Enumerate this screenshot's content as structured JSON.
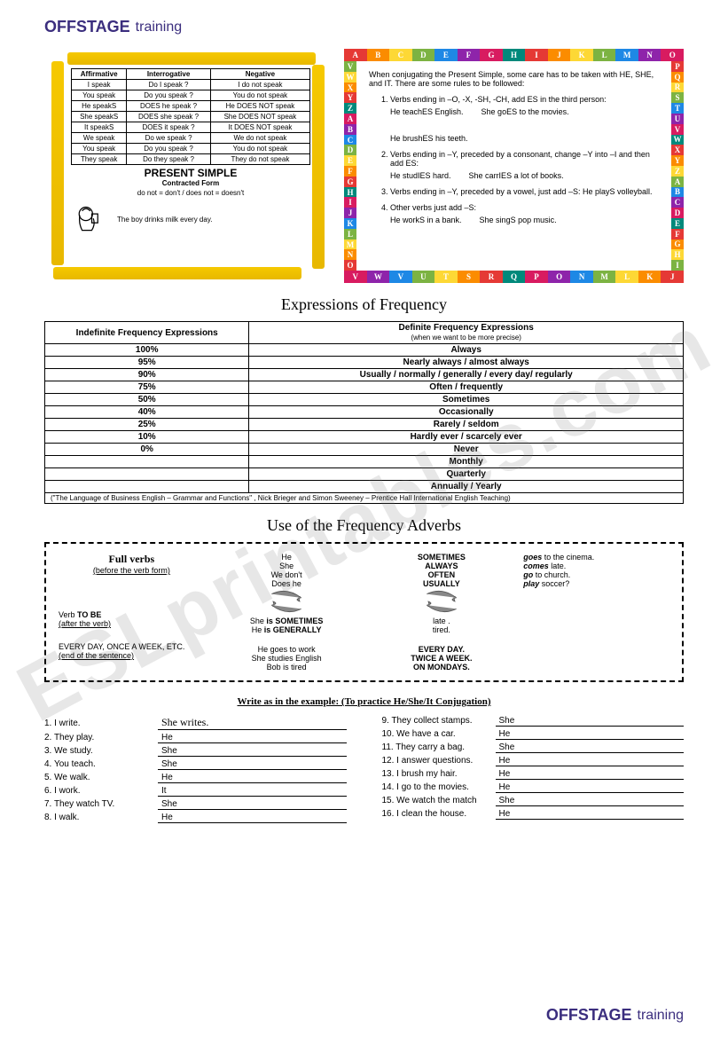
{
  "logo": {
    "brand": "OFFSTAGE",
    "sub": "training",
    "color": "#3b2e7e"
  },
  "watermark": "ESLprintables.com",
  "conj": {
    "headers": [
      "Affirmative",
      "Interrogative",
      "Negative"
    ],
    "rows": [
      [
        "I speak",
        "Do I speak ?",
        "I do not speak"
      ],
      [
        "You speak",
        "Do you speak ?",
        "You do not speak"
      ],
      [
        "He speakS",
        "DOES he speak ?",
        "He DOES NOT speak"
      ],
      [
        "She speakS",
        "DOES she speak ?",
        "She DOES NOT speak"
      ],
      [
        "It speakS",
        "DOES it speak ?",
        "It DOES NOT speak"
      ],
      [
        "We speak",
        "Do we speak ?",
        "We do not speak"
      ],
      [
        "You speak",
        "Do you speak ?",
        "You do not speak"
      ],
      [
        "They speak",
        "Do they speak ?",
        "They do not speak"
      ]
    ],
    "title": "PRESENT SIMPLE",
    "contracted_label": "Contracted Form",
    "contracted": "do not = don't  /  does not = doesn't",
    "example": "The boy drinks milk every day."
  },
  "rules": {
    "intro": "When conjugating the Present Simple, some care has to be taken with HE, SHE, and IT. There are some rules to be followed:",
    "items": [
      {
        "text": "Verbs ending in –O, -X, -SH, -CH, add ES in the third person:",
        "examples": [
          "He teachES English.",
          "She goES to the movies.",
          "He brushES his teeth."
        ]
      },
      {
        "text": "Verbs ending in –Y, preceded by a consonant, change –Y into –I and then add ES:",
        "examples": [
          "He studIES hard.",
          "She carrIES a lot of books."
        ]
      },
      {
        "text": "Verbs ending in –Y, preceded by a vowel, just add –S: He playS volleyball.",
        "examples": []
      },
      {
        "text": "Other verbs just add –S:",
        "examples": [
          "He workS in a bank.",
          "She singS pop music."
        ]
      }
    ],
    "alphabet_top": [
      "A",
      "B",
      "C",
      "D",
      "E",
      "F",
      "G",
      "H",
      "I",
      "J",
      "K",
      "L",
      "M",
      "N",
      "O"
    ],
    "alphabet_right": [
      "P",
      "Q",
      "R",
      "S",
      "T",
      "U",
      "V",
      "W",
      "X",
      "Y",
      "Z",
      "A",
      "B",
      "C",
      "D",
      "E",
      "F",
      "G",
      "H",
      "I"
    ],
    "alphabet_bot": [
      "J",
      "K",
      "L",
      "M",
      "N",
      "O",
      "P",
      "Q",
      "R",
      "S",
      "T",
      "U",
      "V",
      "W",
      "V"
    ],
    "alphabet_left": [
      "O",
      "N",
      "M",
      "L",
      "K",
      "J",
      "I",
      "H",
      "G",
      "F",
      "E",
      "D",
      "C",
      "B",
      "A",
      "Z",
      "Y",
      "X",
      "W",
      "V"
    ],
    "colors": [
      "#e53935",
      "#fb8c00",
      "#fdd835",
      "#7cb342",
      "#1e88e5",
      "#8e24aa",
      "#d81b60",
      "#00897b"
    ]
  },
  "freq": {
    "heading": "Expressions of Frequency",
    "head_l": "Indefinite Frequency Expressions",
    "head_r": "Definite Frequency Expressions",
    "head_r_sub": "(when we want to be more precise)",
    "rows": [
      [
        "100%",
        "Always"
      ],
      [
        "95%",
        "Nearly always / almost always"
      ],
      [
        "90%",
        "Usually / normally / generally / every day/ regularly"
      ],
      [
        "75%",
        "Often / frequently"
      ],
      [
        "50%",
        "Sometimes"
      ],
      [
        "40%",
        "Occasionally"
      ],
      [
        "25%",
        "Rarely / seldom"
      ],
      [
        "10%",
        "Hardly ever / scarcely ever"
      ],
      [
        "0%",
        "Never"
      ],
      [
        "",
        "Monthly"
      ],
      [
        "",
        "Quarterly"
      ],
      [
        "",
        "Annually / Yearly"
      ]
    ],
    "cite": "(\"The Language of Business English – Grammar and Functions\" , Nick Brieger and Simon Sweeney – Prentice Hall International English Teaching)"
  },
  "adverbs": {
    "heading": "Use of the Frequency Adverbs",
    "col1": {
      "l1": "Full verbs",
      "l2": "(before the verb form)",
      "l3": "Verb TO BE",
      "l4": "(after the verb)",
      "l5": "EVERY DAY, ONCE A WEEK, ETC.",
      "l6": "(end of the sentence)"
    },
    "col2": {
      "subjects": [
        "He",
        "She",
        "We don't",
        "Does he"
      ],
      "mid1": "She is SOMETIMES",
      "mid2": "He is GENERALLY",
      "bot": [
        "He goes to work",
        "She studies English",
        "Bob is tired"
      ]
    },
    "col3": {
      "advs": [
        "SOMETIMES",
        "ALWAYS",
        "OFTEN",
        "USUALLY"
      ],
      "mid": [
        "late .",
        "tired."
      ],
      "bot": [
        "EVERY DAY.",
        "TWICE A WEEK.",
        "ON MONDAYS."
      ]
    },
    "col4": {
      "lines": [
        "goes to the cinema.",
        "comes late.",
        "go to church.",
        "play soccer?"
      ]
    }
  },
  "exercise": {
    "title": "Write as in the example: (To practice He/She/It Conjugation)",
    "left": [
      {
        "n": "1. I write.",
        "p": "She",
        "ans": "She writes."
      },
      {
        "n": "2. They play.",
        "p": "He",
        "ans": ""
      },
      {
        "n": "3. We study.",
        "p": "She",
        "ans": ""
      },
      {
        "n": "4. You teach.",
        "p": "She",
        "ans": ""
      },
      {
        "n": "5. We walk.",
        "p": "He",
        "ans": ""
      },
      {
        "n": "6. I work.",
        "p": "It",
        "ans": ""
      },
      {
        "n": "7. They watch TV.",
        "p": "She",
        "ans": ""
      },
      {
        "n": "8. I walk.",
        "p": "He",
        "ans": ""
      }
    ],
    "right": [
      {
        "n": "9. They collect stamps.",
        "p": "She",
        "ans": ""
      },
      {
        "n": "10. We have a car.",
        "p": "He",
        "ans": ""
      },
      {
        "n": "11. They carry a bag.",
        "p": "She",
        "ans": ""
      },
      {
        "n": "12. I answer questions.",
        "p": "He",
        "ans": ""
      },
      {
        "n": "13. I brush my hair.",
        "p": "He",
        "ans": ""
      },
      {
        "n": "14. I go to the movies.",
        "p": "He",
        "ans": ""
      },
      {
        "n": "15. We watch the match",
        "p": "She",
        "ans": ""
      },
      {
        "n": "16. I clean the house.",
        "p": "He",
        "ans": ""
      }
    ]
  }
}
